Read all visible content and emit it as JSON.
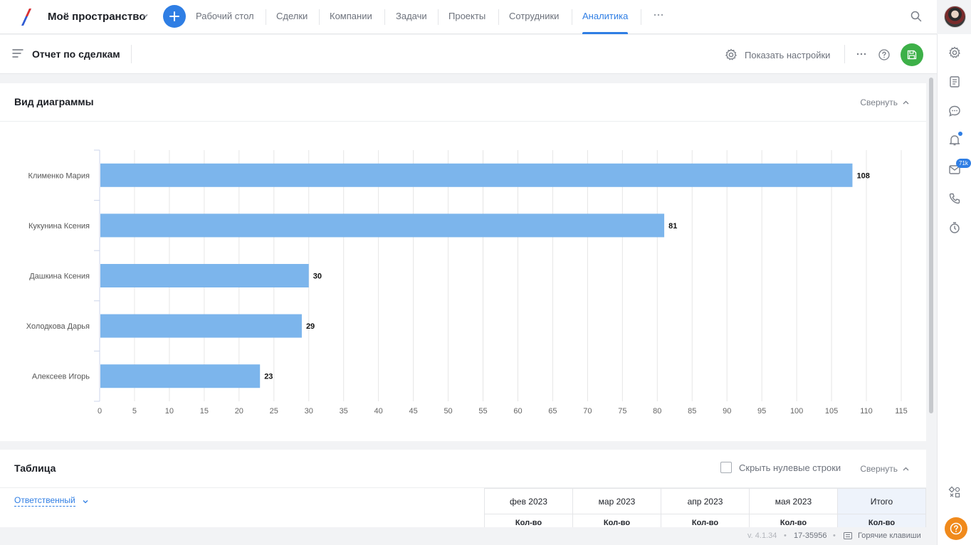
{
  "header": {
    "space_title": "Моё пространство",
    "nav": [
      "Рабочий стол",
      "Сделки",
      "Компании",
      "Задачи",
      "Проекты",
      "Сотрудники",
      "Аналитика"
    ],
    "active_nav": "Аналитика",
    "brand_colors": {
      "accent": "#2f7ee4",
      "save": "#3db048",
      "help": "#f08a1c"
    }
  },
  "subheader": {
    "title": "Отчет по сделкам",
    "settings_label": "Показать настройки"
  },
  "rail": {
    "inbox_badge": "71k"
  },
  "chart_card": {
    "title": "Вид диаграммы",
    "collapse_label": "Свернуть"
  },
  "chart_data": {
    "type": "bar",
    "orientation": "horizontal",
    "categories": [
      "Клименко Мария",
      "Кукунина Ксения",
      "Дашкина Ксения",
      "Холодкова Дарья",
      "Алексеев Игорь"
    ],
    "values": [
      108,
      81,
      30,
      29,
      23
    ],
    "xlim": [
      0,
      115
    ],
    "x_ticks": [
      0,
      5,
      10,
      15,
      20,
      25,
      30,
      35,
      40,
      45,
      50,
      55,
      60,
      65,
      70,
      75,
      80,
      85,
      90,
      95,
      100,
      105,
      110,
      115
    ],
    "grid": true,
    "bar_color": "#7cb5ec",
    "data_labels": true
  },
  "table_card": {
    "title": "Таблица",
    "hide_zero_label": "Скрыть нулевые строки",
    "collapse_label": "Свернуть",
    "group_by": "Ответственный",
    "columns": [
      "фев 2023",
      "мар 2023",
      "апр 2023",
      "мая 2023",
      "Итого"
    ],
    "sub_header": "Кол-во"
  },
  "footer": {
    "version": "v. 4.1.34",
    "build": "17-35956",
    "hotkeys": "Горячие клавиши"
  }
}
